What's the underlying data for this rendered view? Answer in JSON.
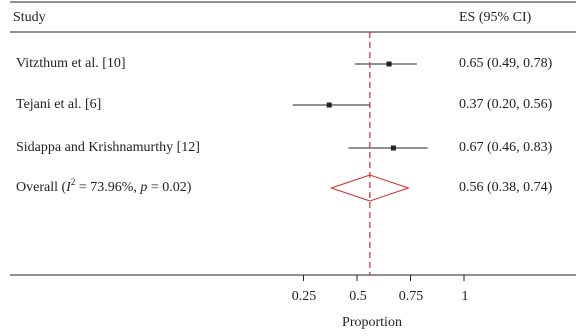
{
  "chart_data": {
    "type": "forest",
    "columns": {
      "study": "Study",
      "es": "ES (95% CI)"
    },
    "studies": [
      {
        "label": "Vitzthum et al. [10]",
        "es": 0.65,
        "lo": 0.49,
        "hi": 0.78,
        "text": "0.65 (0.49, 0.78)"
      },
      {
        "label": "Tejani et al. [6]",
        "es": 0.37,
        "lo": 0.2,
        "hi": 0.56,
        "text": "0.37 (0.20, 0.56)"
      },
      {
        "label": "Sidappa and Krishnamurthy [12]",
        "es": 0.67,
        "lo": 0.46,
        "hi": 0.83,
        "text": "0.67 (0.46, 0.83)"
      }
    ],
    "overall": {
      "label_prefix": "Overall (",
      "i2_symbol": "I",
      "i2_power": "2",
      "i2_value": " = 73.96%, ",
      "p_symbol": "p",
      "p_value": " = 0.02)",
      "es": 0.56,
      "lo": 0.38,
      "hi": 0.74,
      "text": "0.56 (0.38, 0.74)"
    },
    "xlabel": "Proportion",
    "xticks": [
      {
        "value": 0.25,
        "label": "0.25"
      },
      {
        "value": 0.5,
        "label": "0.5"
      },
      {
        "value": 0.75,
        "label": "0.75"
      },
      {
        "value": 1,
        "label": "1"
      }
    ],
    "reference_line": 0.56,
    "colors": {
      "reference": "#d62728",
      "diamond": "#d62728",
      "marks": "#222222"
    }
  }
}
